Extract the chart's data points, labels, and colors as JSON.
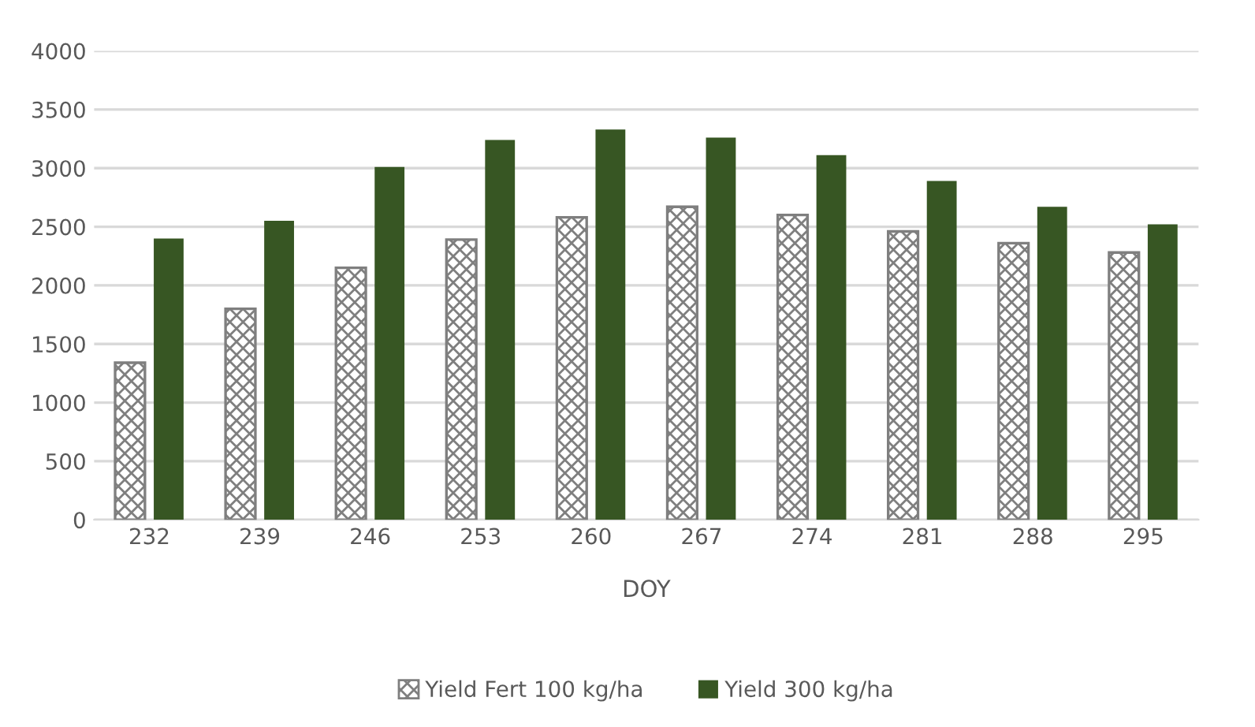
{
  "chart_data": {
    "type": "bar",
    "xlabel": "DOY",
    "categories": [
      "232",
      "239",
      "246",
      "253",
      "260",
      "267",
      "274",
      "281",
      "288",
      "295"
    ],
    "series": [
      {
        "name": "Yield Fert 100 kg/ha",
        "color": "#7f7f7f",
        "values": [
          1340,
          1800,
          2150,
          2390,
          2580,
          2670,
          2600,
          2460,
          2360,
          2280
        ]
      },
      {
        "name": "Yield 300 kg/ha",
        "color": "#375623",
        "values": [
          2400,
          2550,
          3010,
          3240,
          3330,
          3260,
          3110,
          2890,
          2670,
          2520
        ]
      }
    ],
    "ylim": [
      0,
      4000
    ],
    "yticks": [
      0,
      500,
      1000,
      1500,
      2000,
      2500,
      3000,
      3500,
      4000
    ],
    "grid": "y",
    "legend": "bottom"
  }
}
